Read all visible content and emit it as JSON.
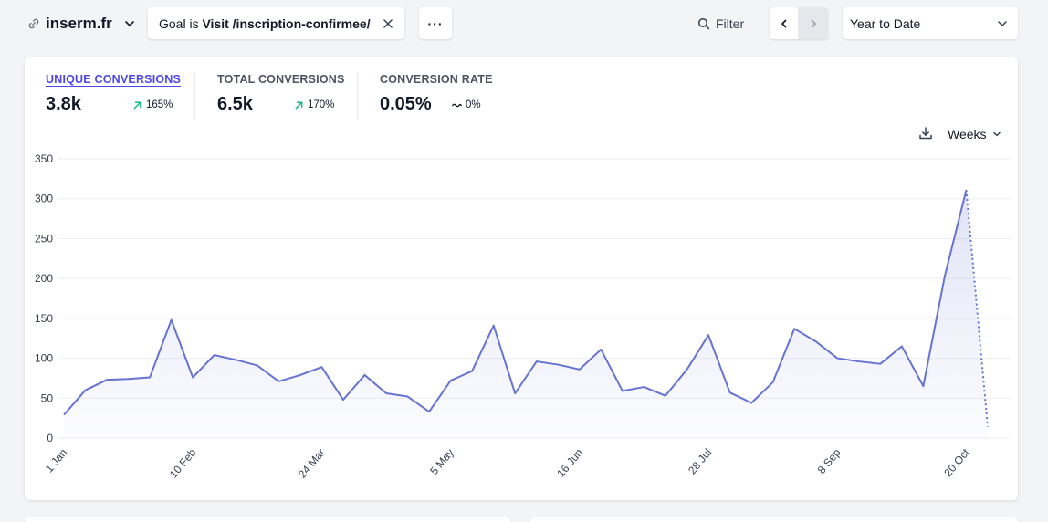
{
  "site": {
    "name": "inserm.fr",
    "link_icon": "link-icon",
    "chevron_icon": "chevron-down-icon"
  },
  "goal_filter": {
    "prefix": "Goal is",
    "value": "Visit /inscription-confirmee/",
    "close_icon": "close-icon"
  },
  "more_button": {
    "label": "···"
  },
  "filter_button": {
    "label": "Filter",
    "icon": "search-icon"
  },
  "period": {
    "label": "Year to Date",
    "prev_icon": "chevron-left-icon",
    "next_icon": "chevron-right-icon"
  },
  "metrics": [
    {
      "label": "UNIQUE CONVERSIONS",
      "value": "3.8k",
      "change": "165%",
      "trend": "up",
      "active": true
    },
    {
      "label": "TOTAL CONVERSIONS",
      "value": "6.5k",
      "change": "170%",
      "trend": "up",
      "active": false
    },
    {
      "label": "CONVERSION RATE",
      "value": "0.05%",
      "change": "0%",
      "trend": "flat",
      "active": false
    }
  ],
  "interval": {
    "label": "Weeks",
    "download_icon": "download-icon"
  },
  "colors": {
    "accent": "#4f46e5",
    "line": "#6673d1",
    "trend_up": "#10b981"
  },
  "chart_data": {
    "type": "line",
    "ylim": [
      0,
      350
    ],
    "yticks": [
      "0",
      "50",
      "100",
      "150",
      "200",
      "250",
      "300",
      "350"
    ],
    "xticks": [
      {
        "label": "1 Jan",
        "index": 0
      },
      {
        "label": "10 Feb",
        "index": 6
      },
      {
        "label": "24 Mar",
        "index": 12
      },
      {
        "label": "5 May",
        "index": 18
      },
      {
        "label": "16 Jun",
        "index": 24
      },
      {
        "label": "28 Jul",
        "index": 30
      },
      {
        "label": "8 Sep",
        "index": 36
      },
      {
        "label": "20 Oct",
        "index": 42
      }
    ],
    "grid": true,
    "series": [
      {
        "values": [
          29,
          60,
          73,
          74,
          76,
          148,
          76,
          104,
          98,
          91,
          71,
          79,
          89,
          48,
          79,
          56,
          52,
          33,
          72,
          84,
          141,
          56,
          96,
          92,
          86,
          111,
          59,
          64,
          53,
          86,
          129,
          57,
          44,
          70,
          137,
          121,
          100,
          96,
          93,
          115,
          65,
          203,
          311,
          14
        ],
        "dashed_from_index": 42
      }
    ]
  }
}
